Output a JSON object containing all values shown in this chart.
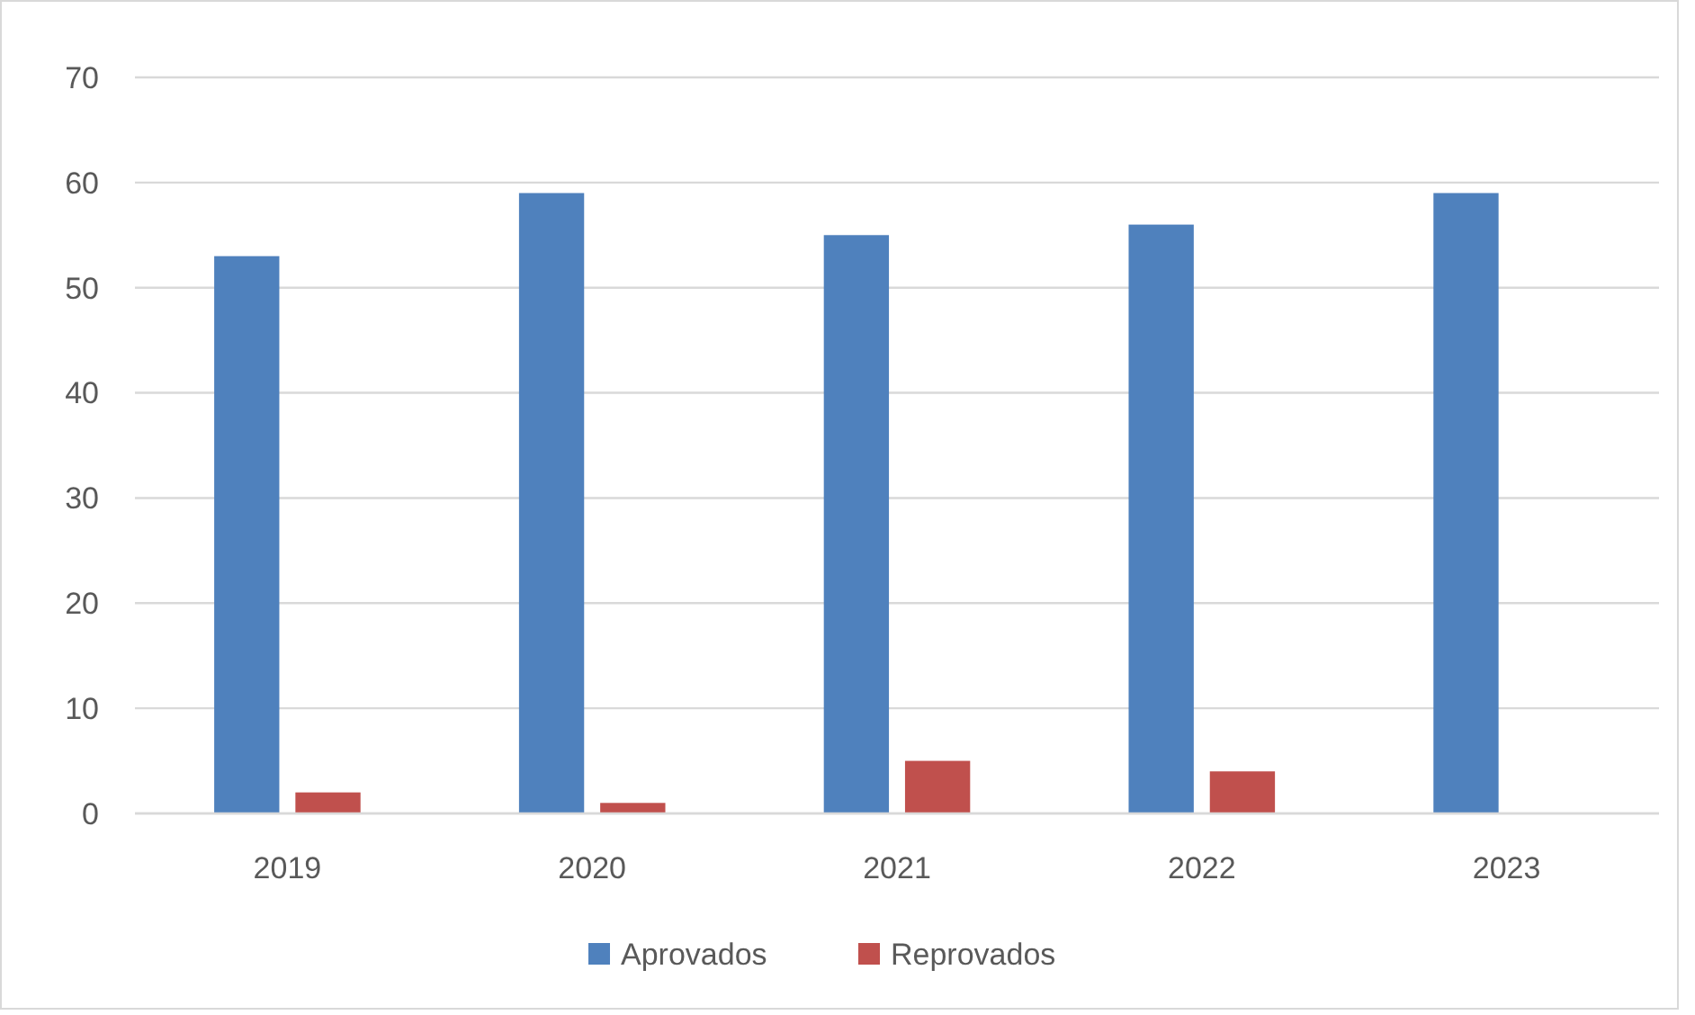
{
  "chart_data": {
    "type": "bar",
    "categories": [
      "2019",
      "2020",
      "2021",
      "2022",
      "2023"
    ],
    "series": [
      {
        "name": "Aprovados",
        "color": "#4f81bd",
        "values": [
          53,
          59,
          55,
          56,
          59
        ]
      },
      {
        "name": "Reprovados",
        "color": "#c0504d",
        "values": [
          2,
          1,
          5,
          4,
          0
        ]
      }
    ],
    "ylim": [
      0,
      70
    ],
    "yticks": [
      0,
      10,
      20,
      30,
      40,
      50,
      60,
      70
    ],
    "grid": "y",
    "legend": "bottom"
  }
}
